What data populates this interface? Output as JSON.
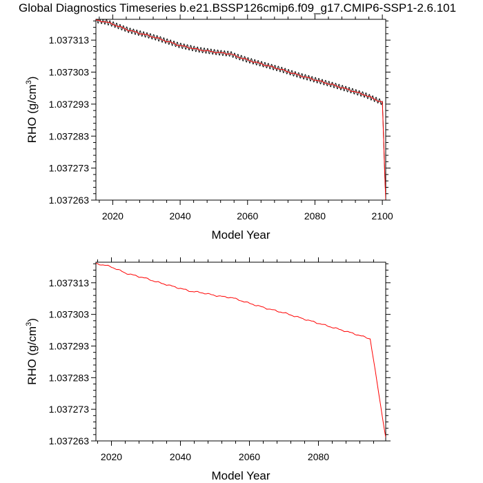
{
  "title": "Global Diagnostics Timeseries b.e21.BSSP126cmip6.f09_g17.CMIP6-SSP1-2.6.101",
  "chart_data": [
    {
      "type": "line",
      "xlabel": "Model Year",
      "ylabel": "RHO (g/cm",
      "ylabel_sup": "3",
      "ylabel_close": ")",
      "xlim": [
        2015,
        2101
      ],
      "ylim": [
        1.037263,
        1.0373195
      ],
      "xticks": [
        2020,
        2040,
        2060,
        2080,
        2100
      ],
      "yticks": [
        "1.037313",
        "1.037303",
        "1.037293",
        "1.037283",
        "1.037273",
        "1.037263"
      ],
      "ytick_values": [
        1.037313,
        1.037303,
        1.037293,
        1.037283,
        1.037273,
        1.037263
      ],
      "series": [
        {
          "style": "monthly",
          "color": "#000000",
          "seasonal_amplitude": 8e-07
        },
        {
          "style": "annual",
          "color": "#ff0000"
        }
      ],
      "x": [
        2015,
        2018,
        2020,
        2022,
        2024,
        2025,
        2030,
        2033,
        2035,
        2040,
        2043,
        2045,
        2050,
        2053,
        2055,
        2056,
        2060,
        2065,
        2070,
        2075,
        2080,
        2085,
        2090,
        2095,
        2100,
        2101
      ],
      "y": [
        1.0373192,
        1.0373187,
        1.037318,
        1.0373172,
        1.0373164,
        1.037316,
        1.0373146,
        1.0373137,
        1.037313,
        1.0373113,
        1.0373106,
        1.0373101,
        1.0373093,
        1.0373089,
        1.0373087,
        1.0373082,
        1.0373068,
        1.0373053,
        1.0373038,
        1.0373021,
        1.0373006,
        1.0372991,
        1.0372975,
        1.0372958,
        1.0372935,
        1.037263
      ]
    },
    {
      "type": "line",
      "xlabel": "Model Year",
      "ylabel": "RHO (g/cm",
      "ylabel_sup": "3",
      "ylabel_close": ")",
      "xlim": [
        2015.5,
        2099.5
      ],
      "ylim": [
        1.037263,
        1.0373195
      ],
      "xticks": [
        2020,
        2040,
        2060,
        2080
      ],
      "yticks": [
        "1.037313",
        "1.037303",
        "1.037293",
        "1.037283",
        "1.037273",
        "1.037263"
      ],
      "ytick_values": [
        1.037313,
        1.037303,
        1.037293,
        1.037283,
        1.037273,
        1.037263
      ],
      "series": [
        {
          "style": "annual",
          "color": "#ff0000"
        }
      ],
      "x": [
        2015.5,
        2018,
        2020,
        2022,
        2024,
        2026,
        2030,
        2033,
        2036,
        2040,
        2043,
        2046,
        2050,
        2053,
        2055,
        2056,
        2060,
        2065,
        2070,
        2075,
        2080,
        2085,
        2090,
        2095,
        2099.5
      ],
      "y": [
        1.037319,
        1.0373186,
        1.037318,
        1.0373171,
        1.0373161,
        1.0373155,
        1.0373144,
        1.0373133,
        1.0373124,
        1.0373112,
        1.0373103,
        1.0373099,
        1.037309,
        1.0373085,
        1.0373083,
        1.0373079,
        1.0373065,
        1.0373049,
        1.0373035,
        1.0373018,
        1.0373002,
        1.0372986,
        1.037297,
        1.0372953,
        1.037264
      ]
    }
  ]
}
